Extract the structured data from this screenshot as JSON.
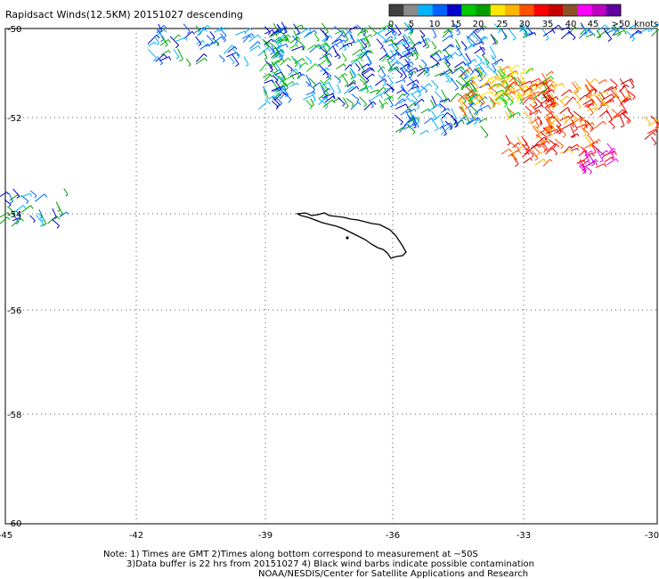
{
  "title": "Rapidsact Winds(12.5KM) 20151027 descending",
  "colorbar": {
    "colors": [
      "#404040",
      "#8a8a8a",
      "#00b4ff",
      "#0060ff",
      "#0000c8",
      "#00c800",
      "#00a000",
      "#ffe600",
      "#ffb400",
      "#ff5000",
      "#ff0000",
      "#c80000",
      "#8c5028",
      "#ff00ff",
      "#c000c0",
      "#6000a0"
    ],
    "labels": [
      "0",
      "5",
      "10",
      "15",
      "20",
      "25",
      "30",
      "35",
      "40",
      "45",
      ">50"
    ],
    "unit": "knots"
  },
  "axes": {
    "lon_ticks": [
      "-45",
      "-42",
      "-39",
      "-36",
      "-33",
      "-30"
    ],
    "lat_ticks": [
      "-50",
      "-52",
      "-54",
      "-56",
      "-58",
      "-60"
    ]
  },
  "notes": {
    "line1": "Note: 1) Times are GMT 2)Times along bottom correspond to measurement at ~50S",
    "line2": "3)Data buffer is 22 hrs from 20151027 4) Black wind barbs indicate possible contamination",
    "line3": "NOAA/NESDIS/Center for Satellite Applications and Research"
  }
}
